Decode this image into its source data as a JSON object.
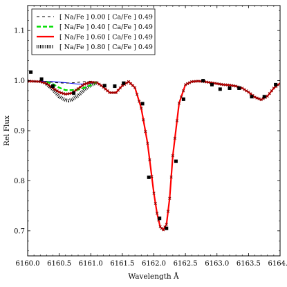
{
  "chart_data": {
    "type": "line",
    "xlabel": "Wavelength Å",
    "ylabel": "Rel Flux",
    "xlim": [
      6160.0,
      6164.0
    ],
    "ylim": [
      0.65,
      1.15
    ],
    "xticks": [
      "6160.0",
      "6160.5",
      "6161.0",
      "6161.5",
      "6162.0",
      "6162.5",
      "6163.0",
      "6163.5",
      "6164.0"
    ],
    "yticks": [
      "0.7",
      "0.8",
      "0.9",
      "1.0",
      "1.1"
    ],
    "grid": false,
    "legend_position": "top-left",
    "series": [
      {
        "name": "[ Na/Fe ] 0.00 [ Ca/Fe ] 0.49",
        "style": "dash-dot",
        "color": "#000000",
        "x": [
          6160.0,
          6160.3,
          6160.45,
          6160.6,
          6160.75,
          6160.9,
          6161.05
        ],
        "values": [
          0.999,
          0.998,
          0.996,
          0.995,
          0.996,
          0.998,
          0.999
        ]
      },
      {
        "name": "[ Na/Fe ] 0.40 [ Ca/Fe ] 0.49",
        "style": "dashed",
        "color": "#00dd00",
        "x": [
          6160.3,
          6160.4,
          6160.5,
          6160.6,
          6160.7,
          6160.8,
          6160.9,
          6161.0,
          6161.1
        ],
        "values": [
          0.998,
          0.993,
          0.986,
          0.981,
          0.981,
          0.982,
          0.986,
          0.991,
          0.997
        ]
      },
      {
        "name": "[ Na/Fe ] 0.60 [ Ca/Fe ] 0.49",
        "style": "solid",
        "color": "#ff0000",
        "x": [
          6160.0,
          6160.2,
          6160.3,
          6160.4,
          6160.5,
          6160.6,
          6160.7,
          6160.8,
          6160.9,
          6161.0,
          6161.1,
          6161.2,
          6161.3,
          6161.4,
          6161.5,
          6161.6,
          6161.7,
          6161.8,
          6161.9,
          6162.0,
          6162.05,
          6162.1,
          6162.15,
          6162.2,
          6162.25,
          6162.3,
          6162.4,
          6162.5,
          6162.6,
          6162.7,
          6162.8,
          6162.9,
          6163.0,
          6163.1,
          6163.2,
          6163.3,
          6163.4,
          6163.5,
          6163.6,
          6163.7,
          6163.8,
          6163.9,
          6164.0
        ],
        "values": [
          0.999,
          0.998,
          0.994,
          0.985,
          0.977,
          0.973,
          0.975,
          0.984,
          0.993,
          0.997,
          0.996,
          0.987,
          0.976,
          0.976,
          0.99,
          0.998,
          0.986,
          0.945,
          0.875,
          0.775,
          0.735,
          0.708,
          0.702,
          0.713,
          0.765,
          0.85,
          0.955,
          0.992,
          0.998,
          0.999,
          0.998,
          0.996,
          0.994,
          0.992,
          0.991,
          0.989,
          0.985,
          0.977,
          0.967,
          0.962,
          0.969,
          0.985,
          0.995
        ]
      },
      {
        "name": "[ Na/Fe ] 0.80 [ Ca/Fe ] 0.49",
        "style": "hatched",
        "color": "#000000",
        "x": [
          6160.3,
          6160.4,
          6160.5,
          6160.6,
          6160.65,
          6160.7,
          6160.8,
          6160.9,
          6161.0,
          6161.1
        ],
        "values": [
          0.993,
          0.982,
          0.968,
          0.961,
          0.96,
          0.962,
          0.97,
          0.982,
          0.991,
          0.996
        ]
      },
      {
        "name": "",
        "style": "solid",
        "color": "#0000ff",
        "x": [
          6160.0,
          6160.2,
          6160.4,
          6160.6,
          6160.8,
          6161.0,
          6161.1
        ],
        "values": [
          0.999,
          0.999,
          0.998,
          0.996,
          0.993,
          0.994,
          0.998
        ]
      },
      {
        "name": "",
        "style": "stars",
        "color": "#8b0000",
        "x": [
          6160.0,
          6160.25,
          6160.5,
          6160.75,
          6161.0,
          6161.25,
          6161.5,
          6161.75,
          6162.0,
          6162.25,
          6162.5,
          6162.75,
          6163.0,
          6163.25,
          6163.5,
          6163.75,
          6164.0
        ],
        "values": [
          0.999,
          0.997,
          0.98,
          0.975,
          0.996,
          0.979,
          0.993,
          0.96,
          0.775,
          0.76,
          0.992,
          0.998,
          0.994,
          0.99,
          0.977,
          0.966,
          0.995
        ]
      },
      {
        "name": "",
        "style": "squares",
        "color": "#000000",
        "x": [
          6160.05,
          6160.22,
          6160.4,
          6160.73,
          6161.22,
          6161.38,
          6161.52,
          6161.82,
          6161.92,
          6162.09,
          6162.2,
          6162.35,
          6162.47,
          6162.78,
          6162.92,
          6163.05,
          6163.2,
          6163.35,
          6163.55,
          6163.75,
          6163.93
        ],
        "values": [
          1.017,
          1.003,
          0.989,
          0.975,
          0.99,
          0.989,
          0.995,
          0.954,
          0.807,
          0.725,
          0.705,
          0.839,
          0.963,
          1.0,
          0.992,
          0.983,
          0.985,
          0.985,
          0.968,
          0.968,
          0.992
        ]
      }
    ]
  }
}
